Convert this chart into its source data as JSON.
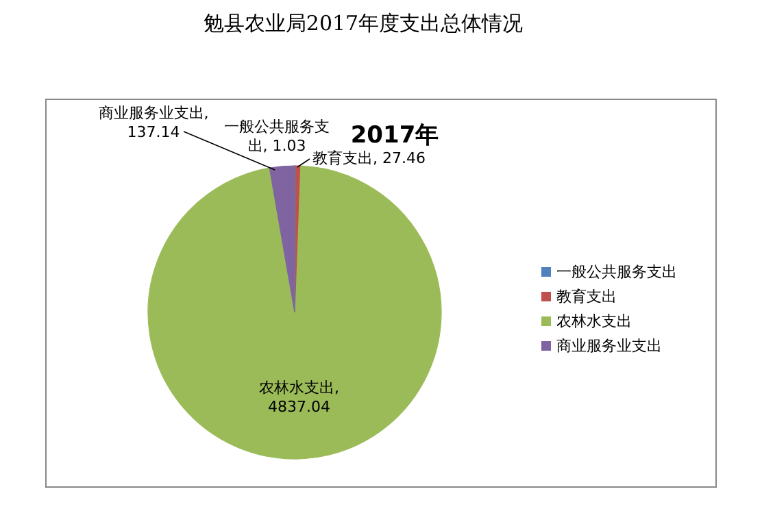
{
  "chart_data": {
    "type": "pie",
    "title": "勉县农业局2017年度支出总体情况",
    "subtitle": "2017年",
    "categories": [
      "一般公共服务支出",
      "教育支出",
      "农林水支出",
      "商业服务业支出"
    ],
    "values": [
      1.03,
      27.46,
      4837.04,
      137.14
    ],
    "value_labels": [
      "一般公共服务支出, 1.03",
      "教育支出, 27.46",
      "农林水支出, 4837.04",
      "商业服务业支出, 137.14"
    ],
    "colors": [
      "#4f81bd",
      "#c0504d",
      "#9bbb59",
      "#8064a2"
    ],
    "legend": "right"
  }
}
